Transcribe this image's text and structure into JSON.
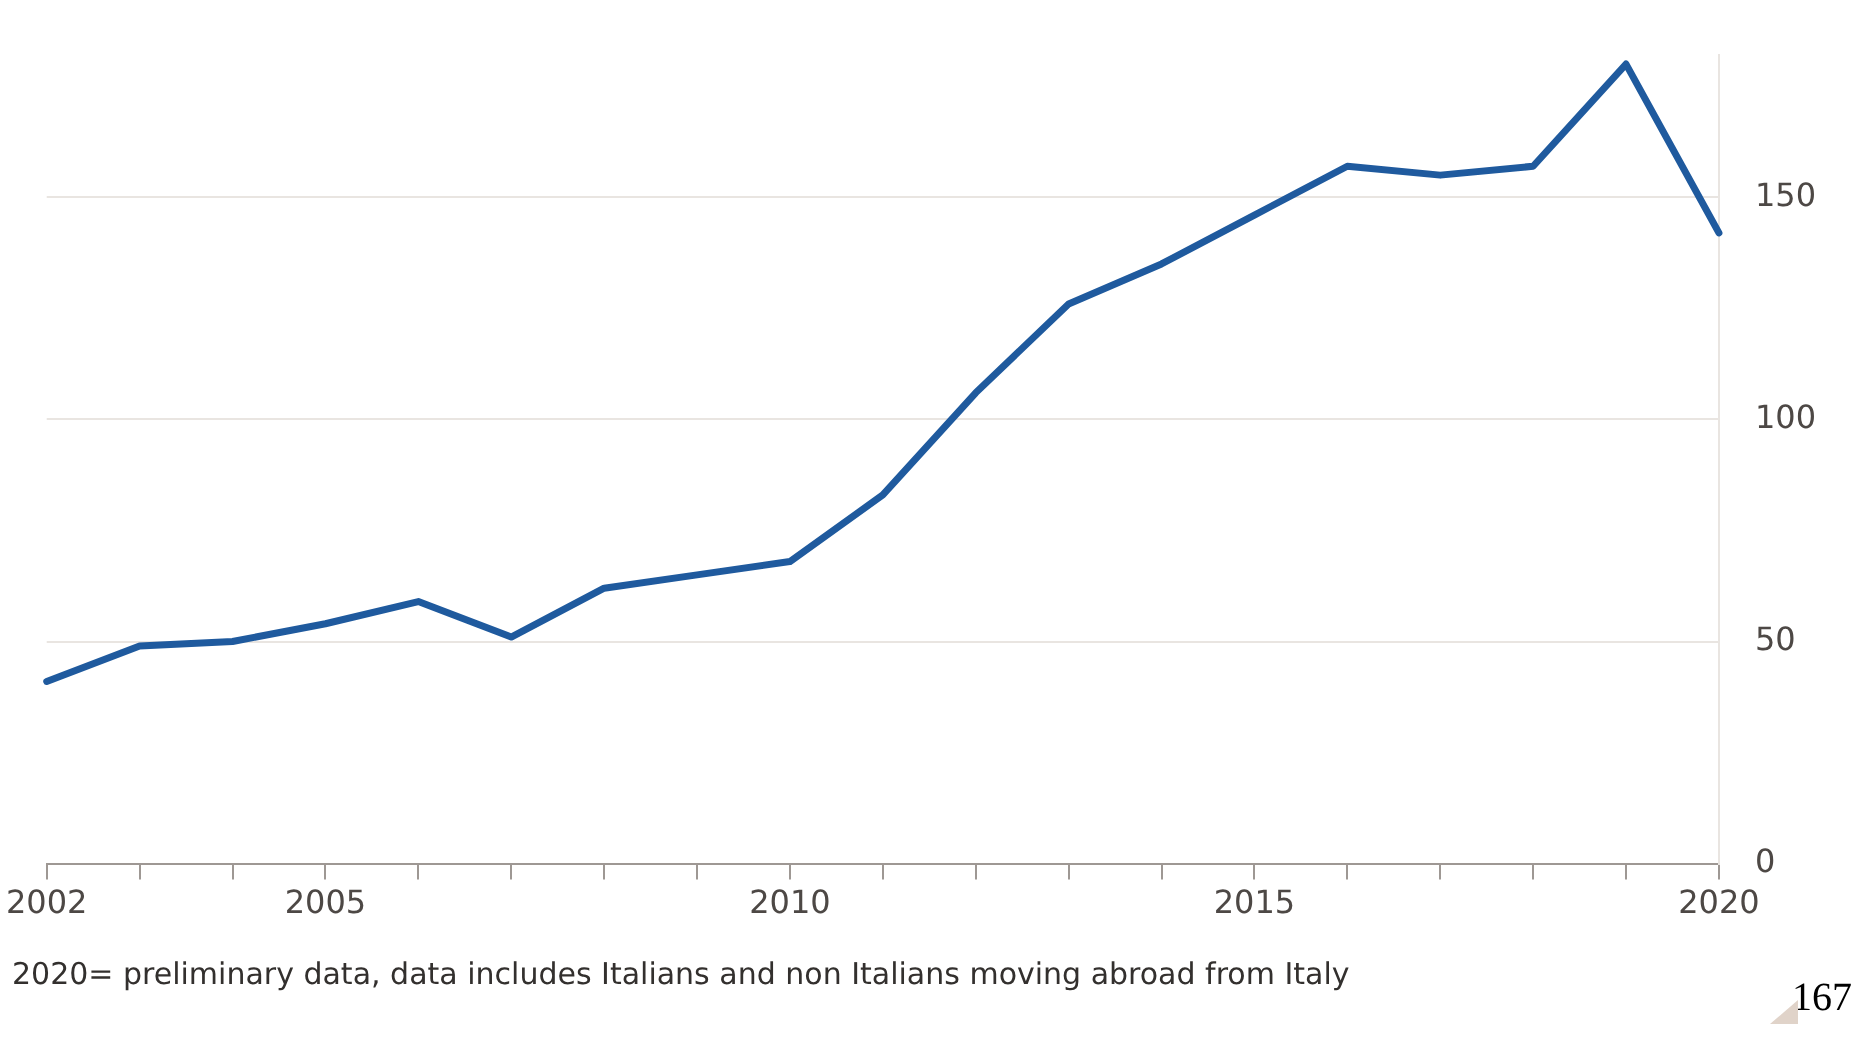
{
  "chart_data": {
    "type": "line",
    "x": [
      2002,
      2003,
      2004,
      2005,
      2006,
      2007,
      2008,
      2009,
      2010,
      2011,
      2012,
      2013,
      2014,
      2015,
      2016,
      2017,
      2018,
      2019,
      2020
    ],
    "series": [
      {
        "color": "#1f5a9e",
        "values": [
          41,
          49,
          50,
          54,
          59,
          51,
          62,
          65,
          68,
          83,
          106,
          126,
          135,
          146,
          157,
          155,
          157,
          180,
          142
        ]
      }
    ],
    "xlim": [
      2002,
      2020
    ],
    "xticks": [
      2002,
      {
        "value": 2003,
        "label": null
      },
      {
        "value": 2004,
        "label": null
      },
      2005,
      {
        "value": 2006,
        "label": null
      },
      {
        "value": 2007,
        "label": null
      },
      {
        "value": 2008,
        "label": null
      },
      {
        "value": 2009,
        "label": null
      },
      2010,
      {
        "value": 2011,
        "label": null
      },
      {
        "value": 2012,
        "label": null
      },
      {
        "value": 2013,
        "label": null
      },
      {
        "value": 2014,
        "label": null
      },
      2015,
      {
        "value": 2016,
        "label": null
      },
      {
        "value": 2017,
        "label": null
      },
      {
        "value": 2018,
        "label": null
      },
      {
        "value": 2019,
        "label": null
      },
      2020
    ],
    "ylim": [
      0,
      182
    ],
    "yticks": [
      0,
      50,
      100,
      150
    ],
    "grid": "y",
    "legend": false,
    "marker": "none",
    "line_style": "solid",
    "annotations": [
      "2020= preliminary data, data includes Italians and non Italians moving abroad from Italy",
      "167"
    ]
  }
}
